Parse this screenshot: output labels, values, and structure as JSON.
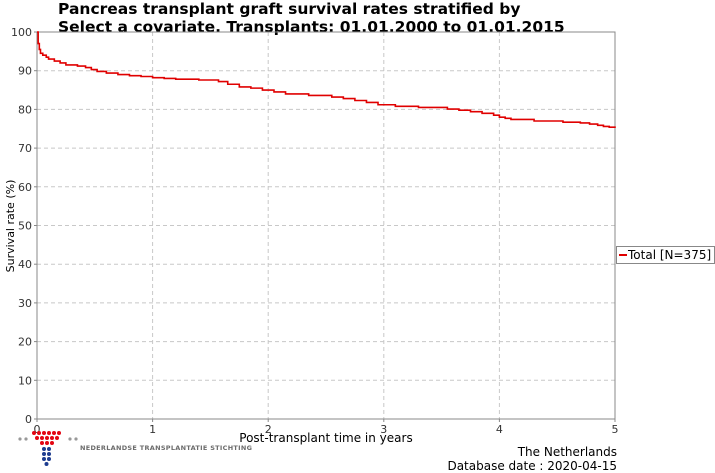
{
  "header": {
    "title_line1": "Pancreas transplant graft survival rates stratified by",
    "title_line2": "Select a covariate. Transplants: 01.01.2000 to 01.01.2015"
  },
  "chart_data": {
    "type": "line",
    "xlabel": "Post-transplant time in years",
    "ylabel": "Survival rate (%)",
    "xlim": [
      0,
      5
    ],
    "ylim": [
      0,
      100
    ],
    "xticks": [
      0,
      1,
      2,
      3,
      4,
      5
    ],
    "yticks": [
      0,
      10,
      20,
      30,
      40,
      50,
      60,
      70,
      80,
      90,
      100
    ],
    "grid": true,
    "legend_position": "right",
    "series": [
      {
        "name": "Total [N=375]",
        "color": "#e00000",
        "step": true,
        "x": [
          0,
          0.01,
          0.02,
          0.03,
          0.05,
          0.08,
          0.1,
          0.15,
          0.2,
          0.25,
          0.35,
          0.42,
          0.47,
          0.52,
          0.6,
          0.7,
          0.8,
          0.9,
          1.0,
          1.1,
          1.2,
          1.4,
          1.57,
          1.65,
          1.75,
          1.85,
          1.95,
          2.05,
          2.15,
          2.35,
          2.55,
          2.65,
          2.75,
          2.85,
          2.95,
          3.1,
          3.3,
          3.55,
          3.65,
          3.75,
          3.85,
          3.95,
          4.0,
          4.05,
          4.1,
          4.3,
          4.55,
          4.7,
          4.78,
          4.85,
          4.9,
          4.95,
          5.0
        ],
        "y": [
          100,
          97,
          95.5,
          94.5,
          94,
          93.5,
          93,
          92.5,
          92,
          91.5,
          91.2,
          90.8,
          90.3,
          89.8,
          89.4,
          89.0,
          88.7,
          88.5,
          88.2,
          88.0,
          87.8,
          87.6,
          87.2,
          86.5,
          85.8,
          85.5,
          85.0,
          84.5,
          84.0,
          83.6,
          83.2,
          82.8,
          82.3,
          81.8,
          81.2,
          80.8,
          80.5,
          80.1,
          79.8,
          79.4,
          79.0,
          78.5,
          78.0,
          77.7,
          77.4,
          77.0,
          76.7,
          76.5,
          76.2,
          75.9,
          75.6,
          75.4,
          75.2
        ]
      }
    ]
  },
  "footer": {
    "country": "The Netherlands",
    "database_date": "Database date : 2020-04-15"
  },
  "logo": {
    "org_name": "NEDERLANDSE TRANSPLANTATIE STICHTING"
  }
}
